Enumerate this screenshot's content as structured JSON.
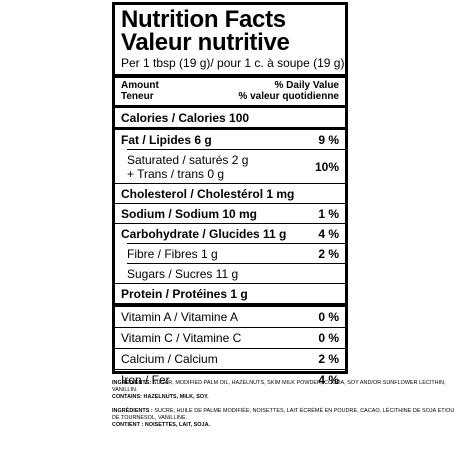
{
  "title_en": "Nutrition Facts",
  "title_fr": "Valeur nutritive",
  "serving": "Per 1 tbsp (19 g)/ pour 1 c. à soupe (19 g)",
  "header": {
    "left_line1": "Amount",
    "left_line2": "Teneur",
    "right_line1": "% Daily Value",
    "right_line2": "% valeur quotidienne"
  },
  "calories": "Calories / Calories 100",
  "fat": {
    "label": "Fat / Lipides 6 g",
    "dv": "9 %"
  },
  "saturated": {
    "label_line1": "Saturated / saturés 2 g",
    "label_line2": "+ Trans / trans 0 g",
    "dv": "10%"
  },
  "cholesterol": "Cholesterol / Cholestérol 1 mg",
  "sodium": {
    "label": "Sodium / Sodium 10 mg",
    "dv": "1 %"
  },
  "carbohydrate": {
    "label": "Carbohydrate / Glucides 11 g",
    "dv": "4 %"
  },
  "fibre": {
    "label": "Fibre / Fibres 1 g",
    "dv": "2 %"
  },
  "sugars": "Sugars / Sucres 11 g",
  "protein": "Protein / Protéines 1 g",
  "vitamins": [
    {
      "label": "Vitamin A / Vitamine A",
      "dv": "0 %"
    },
    {
      "label": "Vitamin C / Vitamine C",
      "dv": "0 %"
    },
    {
      "label": "Calcium / Calcium",
      "dv": "2 %"
    },
    {
      "label": "Iron / Fer",
      "dv": "4 %"
    }
  ],
  "ingredients_en": {
    "label": "INGREDIENTS:",
    "text": "SUGAR, MODIFIED PALM OIL, HAZELNUTS, SKIM MILK POWDER, COCOA, SOY AND/OR SUNFLOWER LECITHIN, VANILLIN.",
    "contains": "CONTAINS: HAZELNUTS, MILK, SOY."
  },
  "ingredients_fr": {
    "label": "INGRÉDIENTS :",
    "text": "SUCRE, HUILE DE PALME MODIFIÉE, NOISETTES, LAIT ÉCRÉMÉ EN POUDRE, CACAO, LÉCITHINE DE SOJA ET/OU DE TOURNESOL, VANILLINE.",
    "contains": "CONTIENT : NOISETTES, LAIT, SOJA."
  }
}
